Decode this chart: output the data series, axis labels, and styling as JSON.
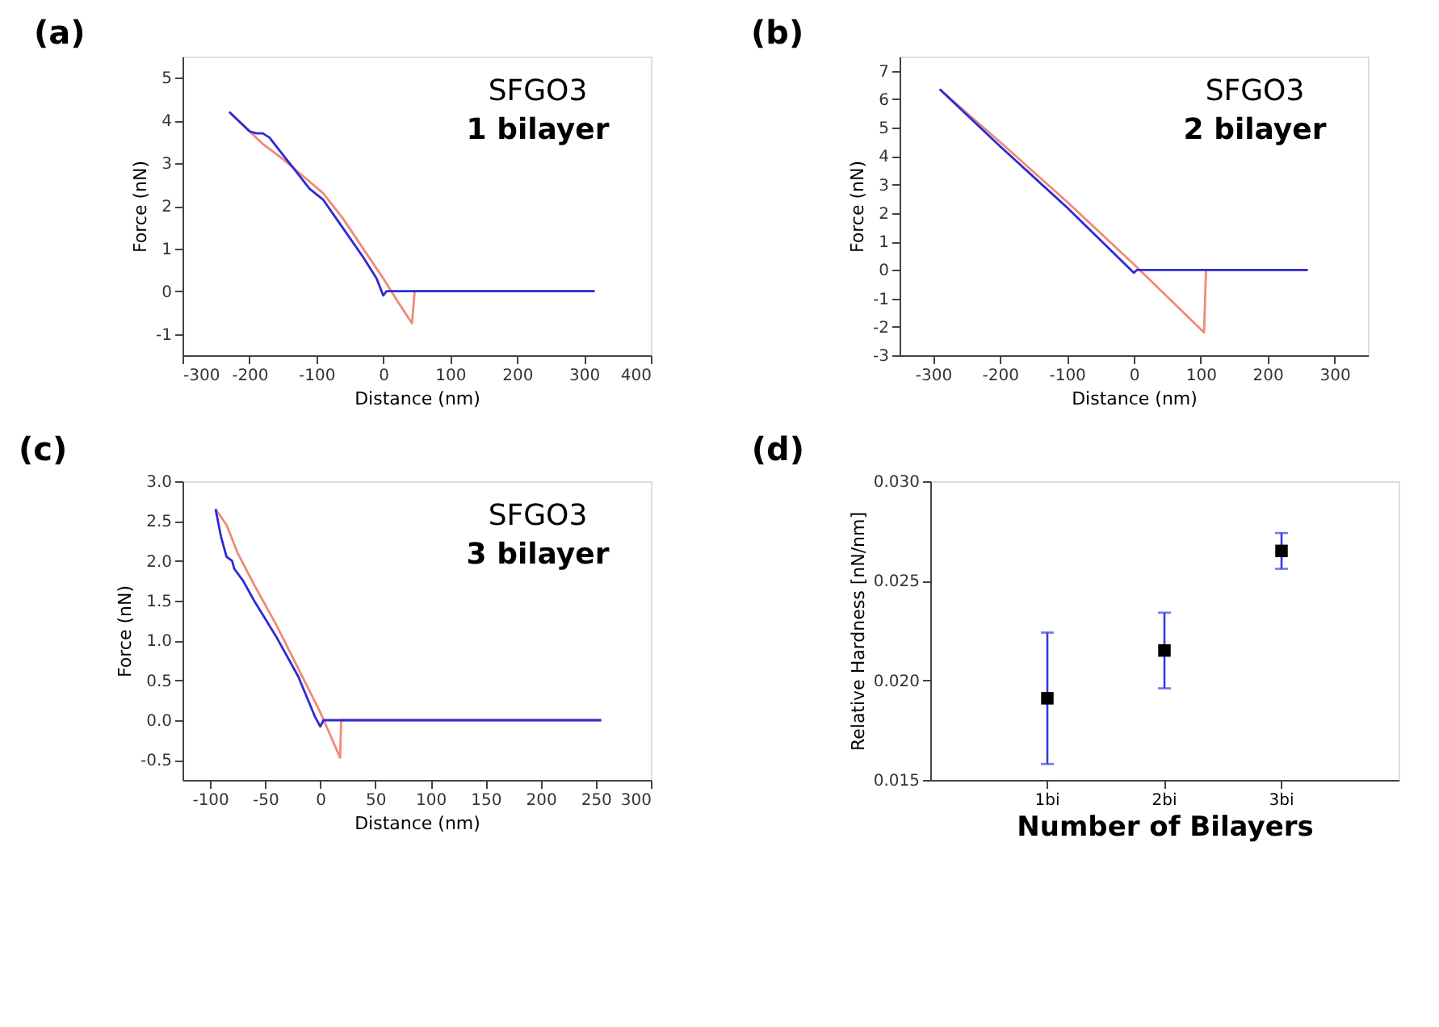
{
  "chart_data": [
    {
      "type": "line",
      "title": "(a)",
      "xlabel": "Distance (nm)",
      "ylabel": "Force (nN)",
      "xlim": [
        -300,
        400
      ],
      "xticks": [
        -300,
        -200,
        -100,
        0,
        100,
        200,
        300,
        400
      ],
      "ylim": [
        -1.5,
        5.5
      ],
      "yticks": [
        -1,
        0,
        1,
        2,
        3,
        4,
        5
      ],
      "grid": false,
      "annotations": [
        "SFGO3",
        "1 bilayer"
      ],
      "series": [
        {
          "color": "#f08a78",
          "x": [
            -230,
            -200,
            -180,
            -150,
            -120,
            -90,
            -60,
            -30,
            0,
            20,
            43,
            47,
            316
          ],
          "values": [
            4.2,
            3.75,
            3.45,
            3.1,
            2.7,
            2.3,
            1.7,
            1.0,
            0.3,
            -0.2,
            -0.75,
            0,
            0
          ]
        },
        {
          "color": "#2b2bd6",
          "x": [
            -230,
            -210,
            -200,
            -190,
            -180,
            -170,
            -150,
            -130,
            -110,
            -90,
            -70,
            -50,
            -30,
            -10,
            0,
            5,
            316
          ],
          "values": [
            4.2,
            3.9,
            3.75,
            3.7,
            3.7,
            3.6,
            3.2,
            2.8,
            2.4,
            2.15,
            1.7,
            1.25,
            0.8,
            0.3,
            -0.1,
            0,
            0
          ]
        }
      ]
    },
    {
      "type": "line",
      "title": "(b)",
      "xlabel": "Distance (nm)",
      "ylabel": "Force (nN)",
      "xlim": [
        -350,
        350
      ],
      "xticks": [
        -300,
        -200,
        -100,
        0,
        100,
        200,
        300
      ],
      "ylim": [
        -3,
        7.5
      ],
      "yticks": [
        -3,
        -2,
        -1,
        0,
        1,
        2,
        3,
        4,
        5,
        6,
        7
      ],
      "grid": false,
      "annotations": [
        "SFGO3",
        "2 bilayer"
      ],
      "series": [
        {
          "color": "#f08a78",
          "x": [
            -290,
            -200,
            -100,
            0,
            105,
            108,
            260
          ],
          "values": [
            6.35,
            4.5,
            2.4,
            0.2,
            -2.2,
            0,
            0
          ]
        },
        {
          "color": "#2b2bd6",
          "x": [
            -290,
            -200,
            -100,
            0,
            5,
            260
          ],
          "values": [
            6.35,
            4.35,
            2.2,
            -0.1,
            0,
            0
          ]
        }
      ]
    },
    {
      "type": "line",
      "title": "(c)",
      "xlabel": "Distance (nm)",
      "ylabel": "Force (nN)",
      "xlim": [
        -125,
        300
      ],
      "xticks": [
        -100,
        -50,
        0,
        50,
        100,
        150,
        200,
        250,
        300
      ],
      "ylim": [
        -0.75,
        3.0
      ],
      "yticks": [
        -0.5,
        {
          "value": 0,
          "label": "0.0"
        },
        0.5,
        {
          "value": 1,
          "label": "1.0"
        },
        1.5,
        {
          "value": 2,
          "label": "2.0"
        },
        2.5,
        {
          "value": 3,
          "label": "3.0"
        }
      ],
      "grid": false,
      "annotations": [
        "SFGO3",
        "3 bilayer"
      ],
      "series": [
        {
          "color": "#f08a78",
          "x": [
            -95,
            -85,
            -75,
            -60,
            -40,
            -20,
            0,
            18,
            19,
            255
          ],
          "values": [
            2.65,
            2.45,
            2.1,
            1.7,
            1.2,
            0.65,
            0.1,
            -0.47,
            0,
            0
          ]
        },
        {
          "color": "#2b2bd6",
          "x": [
            -95,
            -90,
            -85,
            -80,
            -78,
            -70,
            -60,
            -40,
            -20,
            -5,
            0,
            3,
            255
          ],
          "values": [
            2.65,
            2.3,
            2.05,
            2.0,
            1.9,
            1.75,
            1.5,
            1.05,
            0.55,
            0.05,
            -0.08,
            0,
            0
          ]
        }
      ]
    },
    {
      "type": "scatter",
      "title": "(d)",
      "xlabel": "Number of Bilayers",
      "ylabel": "Relative Hardness [nN/nm]",
      "categories": [
        "1bi",
        "2bi",
        "3bi"
      ],
      "ylim": [
        0.015,
        0.03
      ],
      "yticks": [
        0.015,
        {
          "value": 0.02,
          "label": "0.020"
        },
        0.025,
        {
          "value": 0.03,
          "label": "0.030"
        }
      ],
      "grid": false,
      "marker": "square",
      "color": "#000000",
      "values": [
        0.0191,
        0.0215,
        0.0265
      ],
      "errors": [
        [
          0.0158,
          0.0224
        ],
        [
          0.0196,
          0.0234
        ],
        [
          0.0256,
          0.0274
        ]
      ]
    }
  ]
}
